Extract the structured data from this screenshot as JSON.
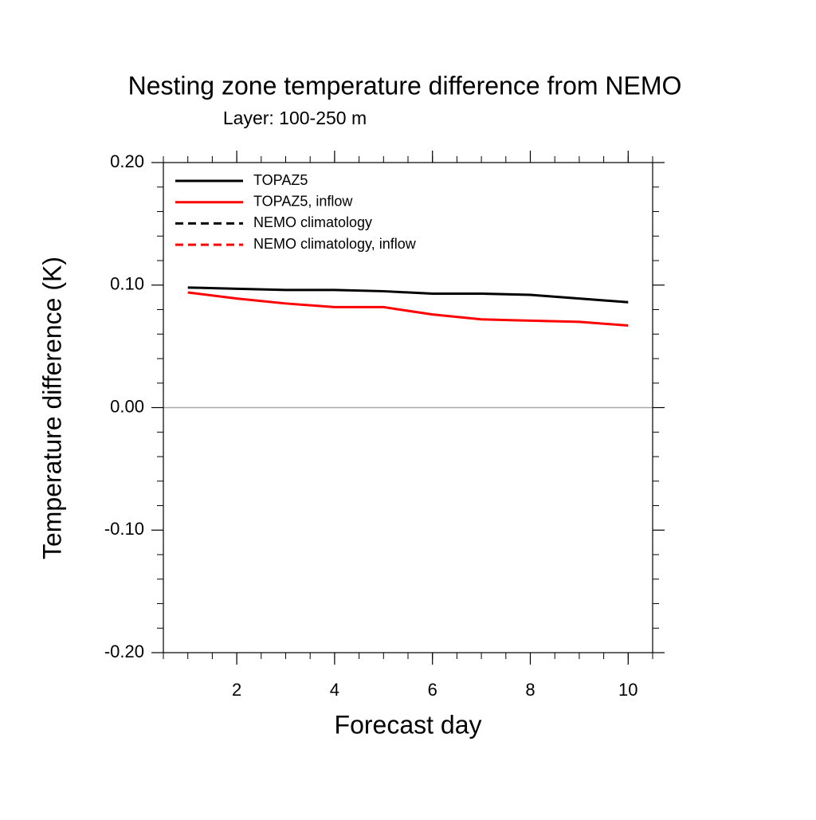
{
  "chart_data": {
    "type": "line",
    "title": "Nesting zone temperature difference from NEMO",
    "subtitle": "Layer: 100-250 m",
    "x_label": "Forecast day",
    "y_label": "Temperature difference (K)",
    "x": [
      1,
      2,
      3,
      4,
      5,
      6,
      7,
      8,
      9,
      10
    ],
    "series": [
      {
        "name": "TOPAZ5",
        "color": "#000000",
        "dash": false,
        "values": [
          0.098,
          0.097,
          0.096,
          0.096,
          0.095,
          0.093,
          0.093,
          0.092,
          0.089,
          0.086
        ]
      },
      {
        "name": "TOPAZ5, inflow",
        "color": "#ff0000",
        "dash": false,
        "values": [
          0.094,
          0.089,
          0.085,
          0.082,
          0.082,
          0.076,
          0.072,
          0.071,
          0.07,
          0.067
        ]
      },
      {
        "name": "NEMO climatology",
        "color": "#000000",
        "dash": true,
        "values": [
          null,
          null,
          null,
          null,
          null,
          null,
          null,
          null,
          null,
          null
        ]
      },
      {
        "name": "NEMO climatology, inflow",
        "color": "#ff0000",
        "dash": true,
        "values": [
          null,
          null,
          null,
          null,
          null,
          null,
          null,
          null,
          null,
          null
        ]
      }
    ],
    "xlim": [
      0.5,
      10.5
    ],
    "xticks": [
      2,
      4,
      6,
      8,
      10
    ],
    "ylim": [
      -0.2,
      0.2
    ],
    "yticks": [
      {
        "value": -0.2,
        "label": "-0.20"
      },
      {
        "value": -0.1,
        "label": "-0.10"
      },
      {
        "value": 0,
        "label": "0.00"
      },
      {
        "value": 0.1,
        "label": "0.10"
      },
      {
        "value": 0.2,
        "label": "0.20"
      }
    ],
    "legend": "upper left"
  }
}
